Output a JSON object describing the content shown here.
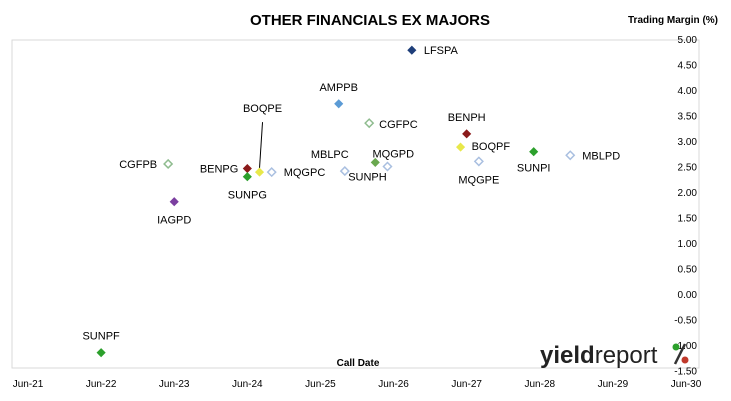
{
  "chart_data": {
    "type": "scatter",
    "title": "OTHER FINANCIALS EX MAJORS",
    "ylabel": "Trading Margin (%)",
    "xlabel": "Call Date",
    "x_ticks": [
      "Jun-21",
      "Jun-22",
      "Jun-23",
      "Jun-24",
      "Jun-25",
      "Jun-26",
      "Jun-27",
      "Jun-28",
      "Jun-29",
      "Jun-30"
    ],
    "y_ticks": [
      "5.00",
      "4.50",
      "4.00",
      "3.50",
      "3.00",
      "2.50",
      "2.00",
      "1.50",
      "1.00",
      "0.50",
      "0.00",
      "-0.50",
      "-1.00",
      "-1.50"
    ],
    "ylim": [
      -1.5,
      5.0
    ],
    "xlim": [
      "2021-06",
      "2030-06"
    ],
    "grid": false,
    "points": [
      {
        "label": "LFSPA",
        "x": "2026-09",
        "y": 4.78,
        "color": "#1f3f7a",
        "filled": true
      },
      {
        "label": "AMPPB",
        "x": "2025-09",
        "y": 3.73,
        "color": "#5b9bd5",
        "filled": true
      },
      {
        "label": "CGFPC",
        "x": "2026-02",
        "y": 3.35,
        "color": "#8fbc8f",
        "filled": false
      },
      {
        "label": "BENPH",
        "x": "2027-06",
        "y": 3.14,
        "color": "#8b1a1a",
        "filled": true
      },
      {
        "label": "BOQPF",
        "x": "2027-05",
        "y": 2.88,
        "color": "#e8e84a",
        "filled": true
      },
      {
        "label": "SUNPI",
        "x": "2028-05",
        "y": 2.79,
        "color": "#2ca02c",
        "filled": true
      },
      {
        "label": "MBLPD",
        "x": "2028-11",
        "y": 2.72,
        "color": "#a9bfe0",
        "filled": false
      },
      {
        "label": "MQGPE",
        "x": "2027-08",
        "y": 2.6,
        "color": "#a9bfe0",
        "filled": false
      },
      {
        "label": "MQGPD",
        "x": "2026-03",
        "y": 2.58,
        "color": "#6aa84f",
        "filled": true
      },
      {
        "label": "SUNPH",
        "x": "2026-05",
        "y": 2.5,
        "color": "#a9bfe0",
        "filled": false
      },
      {
        "label": "MBLPC",
        "x": "2025-10",
        "y": 2.41,
        "color": "#a9bfe0",
        "filled": false
      },
      {
        "label": "MQGPC",
        "x": "2024-10",
        "y": 2.39,
        "color": "#a9bfe0",
        "filled": false
      },
      {
        "label": "BOQPE",
        "x": "2024-08",
        "y": 2.39,
        "color": "#e8e84a",
        "filled": true
      },
      {
        "label": "BENPG",
        "x": "2024-06",
        "y": 2.46,
        "color": "#8b1a1a",
        "filled": true
      },
      {
        "label": "SUNPG",
        "x": "2024-06",
        "y": 2.3,
        "color": "#2ca02c",
        "filled": true
      },
      {
        "label": "CGFPB",
        "x": "2023-05",
        "y": 2.55,
        "color": "#8fbc8f",
        "filled": false
      },
      {
        "label": "IAGPD",
        "x": "2023-06",
        "y": 1.81,
        "color": "#7b3fa0",
        "filled": true
      },
      {
        "label": "SUNPF",
        "x": "2022-06",
        "y": -1.15,
        "color": "#2ca02c",
        "filled": true
      }
    ]
  },
  "logo": {
    "text_a": "yield",
    "text_b": "report",
    "symbol": "%",
    "colors": {
      "a": "#222222",
      "b": "#222222",
      "symbol_top": "#2ca02c",
      "symbol_bottom": "#c0392b"
    }
  }
}
